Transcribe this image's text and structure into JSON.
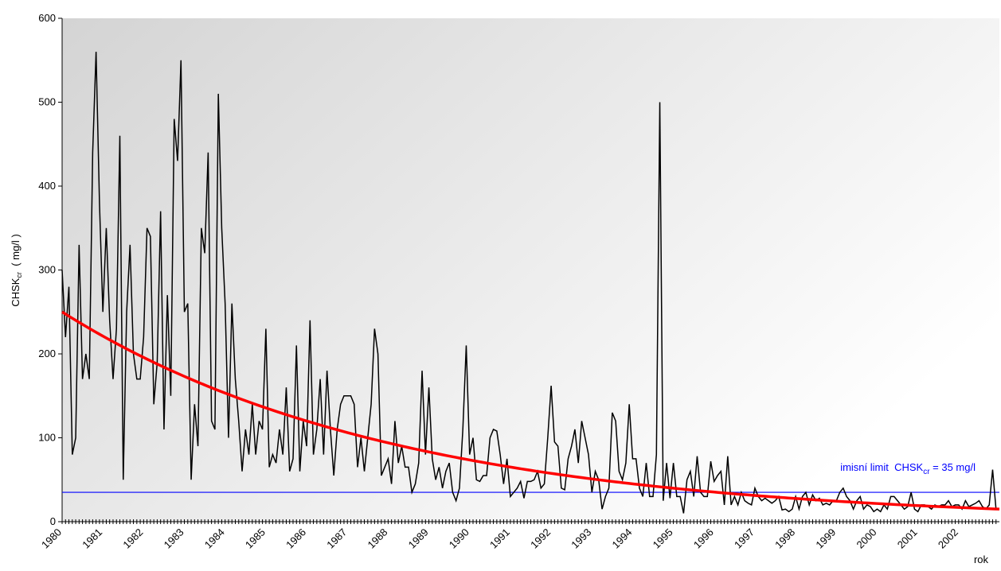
{
  "chart_data": {
    "type": "line",
    "y_label": {
      "main": "CHSK",
      "sub": "cr",
      "unit": "  ( mg/l )"
    },
    "x_label": "rok",
    "categories": [
      "1980",
      null,
      null,
      null,
      null,
      null,
      null,
      null,
      null,
      null,
      null,
      null,
      "1981",
      null,
      null,
      null,
      null,
      null,
      null,
      null,
      null,
      null,
      null,
      null,
      "1982",
      null,
      null,
      null,
      null,
      null,
      null,
      null,
      null,
      null,
      null,
      null,
      "1983",
      null,
      null,
      null,
      null,
      null,
      null,
      null,
      null,
      null,
      null,
      null,
      "1984",
      null,
      null,
      null,
      null,
      null,
      null,
      null,
      null,
      null,
      null,
      null,
      "1985",
      null,
      null,
      null,
      null,
      null,
      null,
      null,
      null,
      null,
      null,
      null,
      "1986",
      null,
      null,
      null,
      null,
      null,
      null,
      null,
      null,
      null,
      null,
      null,
      "1987",
      null,
      null,
      null,
      null,
      null,
      null,
      null,
      null,
      null,
      null,
      null,
      "1988",
      null,
      null,
      null,
      null,
      null,
      null,
      null,
      null,
      null,
      null,
      null,
      "1989",
      null,
      null,
      null,
      null,
      null,
      null,
      null,
      null,
      null,
      null,
      null,
      "1990",
      null,
      null,
      null,
      null,
      null,
      null,
      null,
      null,
      null,
      null,
      null,
      "1991",
      null,
      null,
      null,
      null,
      null,
      null,
      null,
      null,
      null,
      null,
      null,
      "1992",
      null,
      null,
      null,
      null,
      null,
      null,
      null,
      null,
      null,
      null,
      null,
      "1993",
      null,
      null,
      null,
      null,
      null,
      null,
      null,
      null,
      null,
      null,
      null,
      "1994",
      null,
      null,
      null,
      null,
      null,
      null,
      null,
      null,
      null,
      null,
      null,
      "1995",
      null,
      null,
      null,
      null,
      null,
      null,
      null,
      null,
      null,
      null,
      null,
      "1996",
      null,
      null,
      null,
      null,
      null,
      null,
      null,
      null,
      null,
      null,
      null,
      "1997",
      null,
      null,
      null,
      null,
      null,
      null,
      null,
      null,
      null,
      null,
      null,
      "1998",
      null,
      null,
      null,
      null,
      null,
      null,
      null,
      null,
      null,
      null,
      null,
      "1999",
      null,
      null,
      null,
      null,
      null,
      null,
      null,
      null,
      null,
      null,
      null,
      "2000",
      null,
      null,
      null,
      null,
      null,
      null,
      null,
      null,
      null,
      null,
      null,
      "2001",
      null,
      null,
      null,
      null,
      null,
      null,
      null,
      null,
      null,
      null,
      null,
      "2002",
      null,
      null,
      null,
      null,
      null,
      null,
      null,
      null,
      null,
      null,
      null
    ],
    "series": [
      {
        "color": "#000000",
        "values": [
          300,
          220,
          280,
          80,
          100,
          330,
          170,
          200,
          170,
          440,
          560,
          380,
          250,
          350,
          240,
          170,
          230,
          460,
          50,
          250,
          330,
          200,
          170,
          170,
          220,
          350,
          340,
          140,
          190,
          370,
          110,
          270,
          150,
          480,
          430,
          550,
          250,
          260,
          50,
          140,
          90,
          350,
          320,
          440,
          120,
          110,
          510,
          350,
          260,
          100,
          260,
          170,
          120,
          60,
          110,
          80,
          140,
          80,
          120,
          110,
          230,
          65,
          80,
          70,
          110,
          80,
          160,
          60,
          75,
          210,
          60,
          120,
          90,
          240,
          80,
          110,
          170,
          80,
          180,
          110,
          55,
          110,
          140,
          150,
          150,
          150,
          140,
          65,
          100,
          60,
          100,
          140,
          230,
          200,
          55,
          65,
          75,
          45,
          120,
          70,
          90,
          65,
          65,
          35,
          45,
          70,
          180,
          80,
          160,
          75,
          50,
          65,
          40,
          60,
          70,
          35,
          25,
          40,
          110,
          210,
          80,
          100,
          50,
          48,
          55,
          55,
          100,
          110,
          108,
          80,
          45,
          75,
          30,
          35,
          40,
          48,
          28,
          48,
          48,
          50,
          60,
          40,
          45,
          100,
          162,
          95,
          90,
          40,
          38,
          75,
          90,
          110,
          70,
          120,
          100,
          80,
          35,
          60,
          50,
          15,
          30,
          40,
          130,
          120,
          60,
          50,
          70,
          140,
          75,
          75,
          40,
          30,
          70,
          30,
          30,
          80,
          500,
          25,
          70,
          28,
          70,
          30,
          30,
          10,
          50,
          60,
          30,
          78,
          35,
          30,
          30,
          72,
          48,
          55,
          60,
          20,
          78,
          20,
          30,
          20,
          35,
          25,
          22,
          20,
          40,
          30,
          25,
          28,
          25,
          22,
          25,
          30,
          14,
          15,
          12,
          15,
          30,
          15,
          30,
          35,
          20,
          32,
          25,
          28,
          20,
          22,
          20,
          25,
          25,
          35,
          40,
          30,
          25,
          15,
          25,
          30,
          15,
          20,
          18,
          12,
          15,
          12,
          20,
          15,
          30,
          30,
          25,
          20,
          15,
          18,
          35,
          15,
          12,
          20,
          20,
          18,
          15,
          20,
          18,
          20,
          20,
          25,
          18,
          20,
          20,
          15,
          25,
          18,
          20,
          22,
          25,
          18,
          15,
          20,
          62,
          15
        ]
      }
    ],
    "trend": {
      "color": "#ff0000",
      "start": 250,
      "end": 15
    },
    "limit": 35,
    "limit_color": "#0000ff",
    "annotation": {
      "text": "imisní limit  CHSK",
      "sub": "cr",
      "rest": " = 35 mg/l"
    },
    "ylim": [
      0,
      600
    ],
    "yticks": [
      0,
      100,
      200,
      300,
      400,
      500,
      600
    ],
    "grid": false
  }
}
